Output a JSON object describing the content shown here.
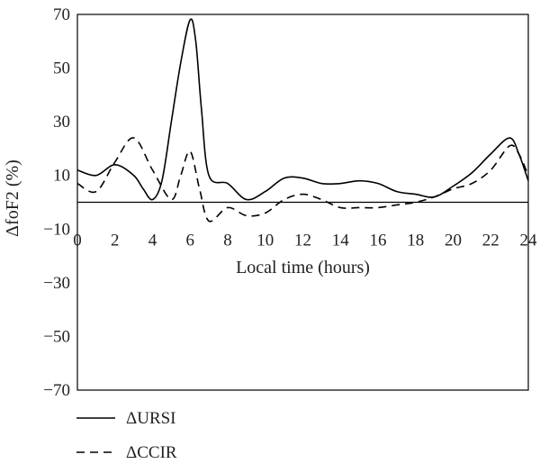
{
  "chart_data": {
    "type": "line",
    "xlabel": "Local time (hours)",
    "ylabel": "ΔfoF2 (%)",
    "xlim": [
      0,
      24
    ],
    "ylim": [
      -70,
      70
    ],
    "x_ticks": [
      0,
      2,
      4,
      6,
      8,
      10,
      12,
      14,
      16,
      18,
      20,
      22,
      24
    ],
    "y_ticks": [
      70,
      50,
      30,
      10,
      -10,
      -30,
      -50,
      -70
    ],
    "y_tick_labels": [
      "70",
      "50",
      "30",
      "10",
      "−10",
      "−30",
      "−50",
      "−70"
    ],
    "grid": false,
    "zero_line": true,
    "legend_position": "bottom-left",
    "series": [
      {
        "name": "ΔURSI",
        "style": "solid",
        "color": "#000000",
        "x": [
          0,
          1,
          2,
          3,
          3.5,
          4,
          4.5,
          5,
          5.5,
          6,
          6.3,
          6.6,
          7,
          8,
          9,
          10,
          11,
          12,
          13,
          14,
          15,
          16,
          17,
          18,
          19,
          20,
          21,
          22,
          23,
          23.5,
          24
        ],
        "y": [
          12,
          10,
          14,
          10,
          5,
          1,
          8,
          30,
          52,
          68,
          60,
          35,
          10,
          7,
          1,
          4,
          9,
          9,
          7,
          7,
          8,
          7,
          4,
          3,
          2,
          6,
          11,
          18,
          24,
          18,
          8
        ]
      },
      {
        "name": "ΔCCIR",
        "style": "dashed",
        "color": "#000000",
        "x": [
          0,
          1,
          2,
          3,
          4,
          5,
          5.5,
          6,
          6.5,
          7,
          8,
          9,
          10,
          11,
          12,
          13,
          14,
          15,
          16,
          17,
          18,
          19,
          20,
          21,
          22,
          23,
          23.5,
          24
        ],
        "y": [
          7,
          4,
          15,
          24,
          12,
          1,
          10,
          19,
          5,
          -7,
          -2,
          -5,
          -4,
          1,
          3,
          1,
          -2,
          -2,
          -2,
          -1,
          0,
          2,
          5,
          7,
          12,
          21,
          18,
          10
        ]
      }
    ]
  }
}
